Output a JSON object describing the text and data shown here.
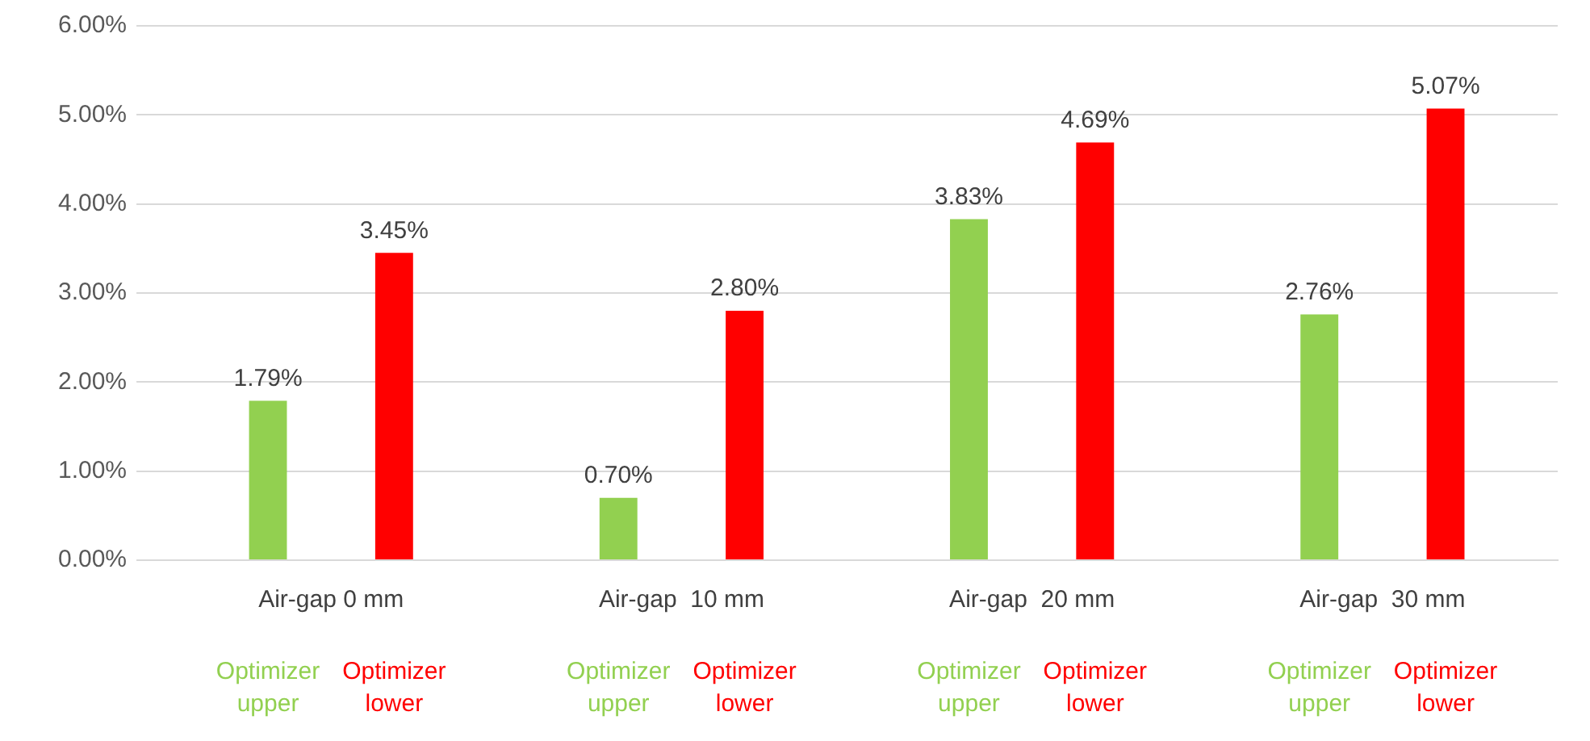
{
  "chart_data": {
    "type": "bar",
    "categories": [
      "Air-gap 0 mm",
      "Air-gap  10 mm",
      "Air-gap  20 mm",
      "Air-gap  30 mm"
    ],
    "series": [
      {
        "name": "Optimizer upper",
        "color": "#92d050",
        "values": [
          1.79,
          0.7,
          3.83,
          2.76
        ],
        "value_labels": [
          "1.79%",
          "0.70%",
          "3.83%",
          "2.76%"
        ]
      },
      {
        "name": "Optimizer lower",
        "color": "#ff0000",
        "values": [
          3.45,
          2.8,
          4.69,
          5.07
        ],
        "value_labels": [
          "3.45%",
          "2.80%",
          "4.69%",
          "5.07%"
        ]
      }
    ],
    "ylim": [
      0,
      6
    ],
    "yticks": [
      {
        "value": 0,
        "label": "0.00%"
      },
      {
        "value": 1,
        "label": "1.00%"
      },
      {
        "value": 2,
        "label": "2.00%"
      },
      {
        "value": 3,
        "label": "3.00%"
      },
      {
        "value": 4,
        "label": "4.00%"
      },
      {
        "value": 5,
        "label": "5.00%"
      },
      {
        "value": 6,
        "label": "6.00%"
      }
    ],
    "grid": "y",
    "legend": false
  }
}
